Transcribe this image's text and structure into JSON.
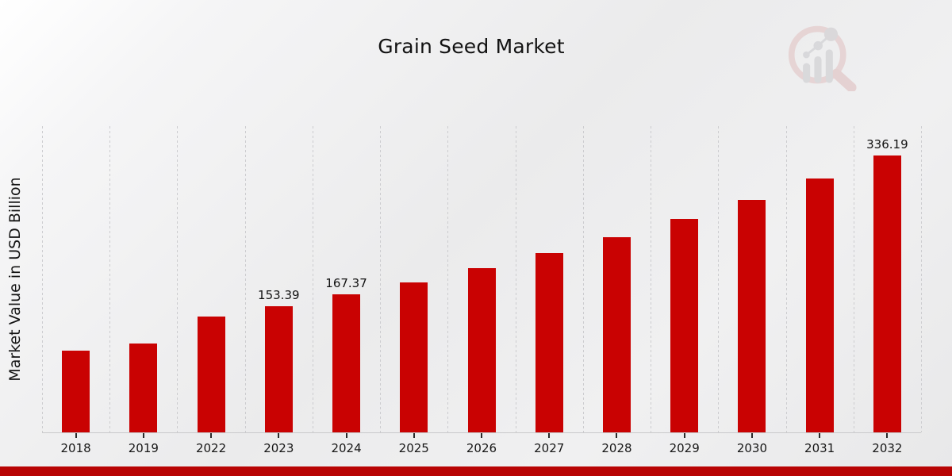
{
  "page": {
    "title": "Grain Seed Market",
    "logo_icon": "magnifier-bar-chart-icon"
  },
  "chart_data": {
    "type": "bar",
    "title": "Grain Seed Market",
    "xlabel": "",
    "ylabel": "Market Value in USD Billion",
    "categories": [
      "2018",
      "2019",
      "2022",
      "2023",
      "2024",
      "2025",
      "2026",
      "2027",
      "2028",
      "2029",
      "2030",
      "2031",
      "2032"
    ],
    "values": [
      99.18,
      108.21,
      140.59,
      153.39,
      167.37,
      182.62,
      199.26,
      217.41,
      237.22,
      258.83,
      282.41,
      308.14,
      336.19
    ],
    "data_labels": {
      "2023": "153.39",
      "2024": "167.37",
      "2032": "336.19"
    },
    "ylim": [
      0,
      373
    ],
    "grid": "vertical-dashed",
    "legend": "none",
    "bar_color": "#c90202",
    "gridline_color": "#cccccf",
    "footer_band_color": "#b80404",
    "text_color": "#111111"
  }
}
